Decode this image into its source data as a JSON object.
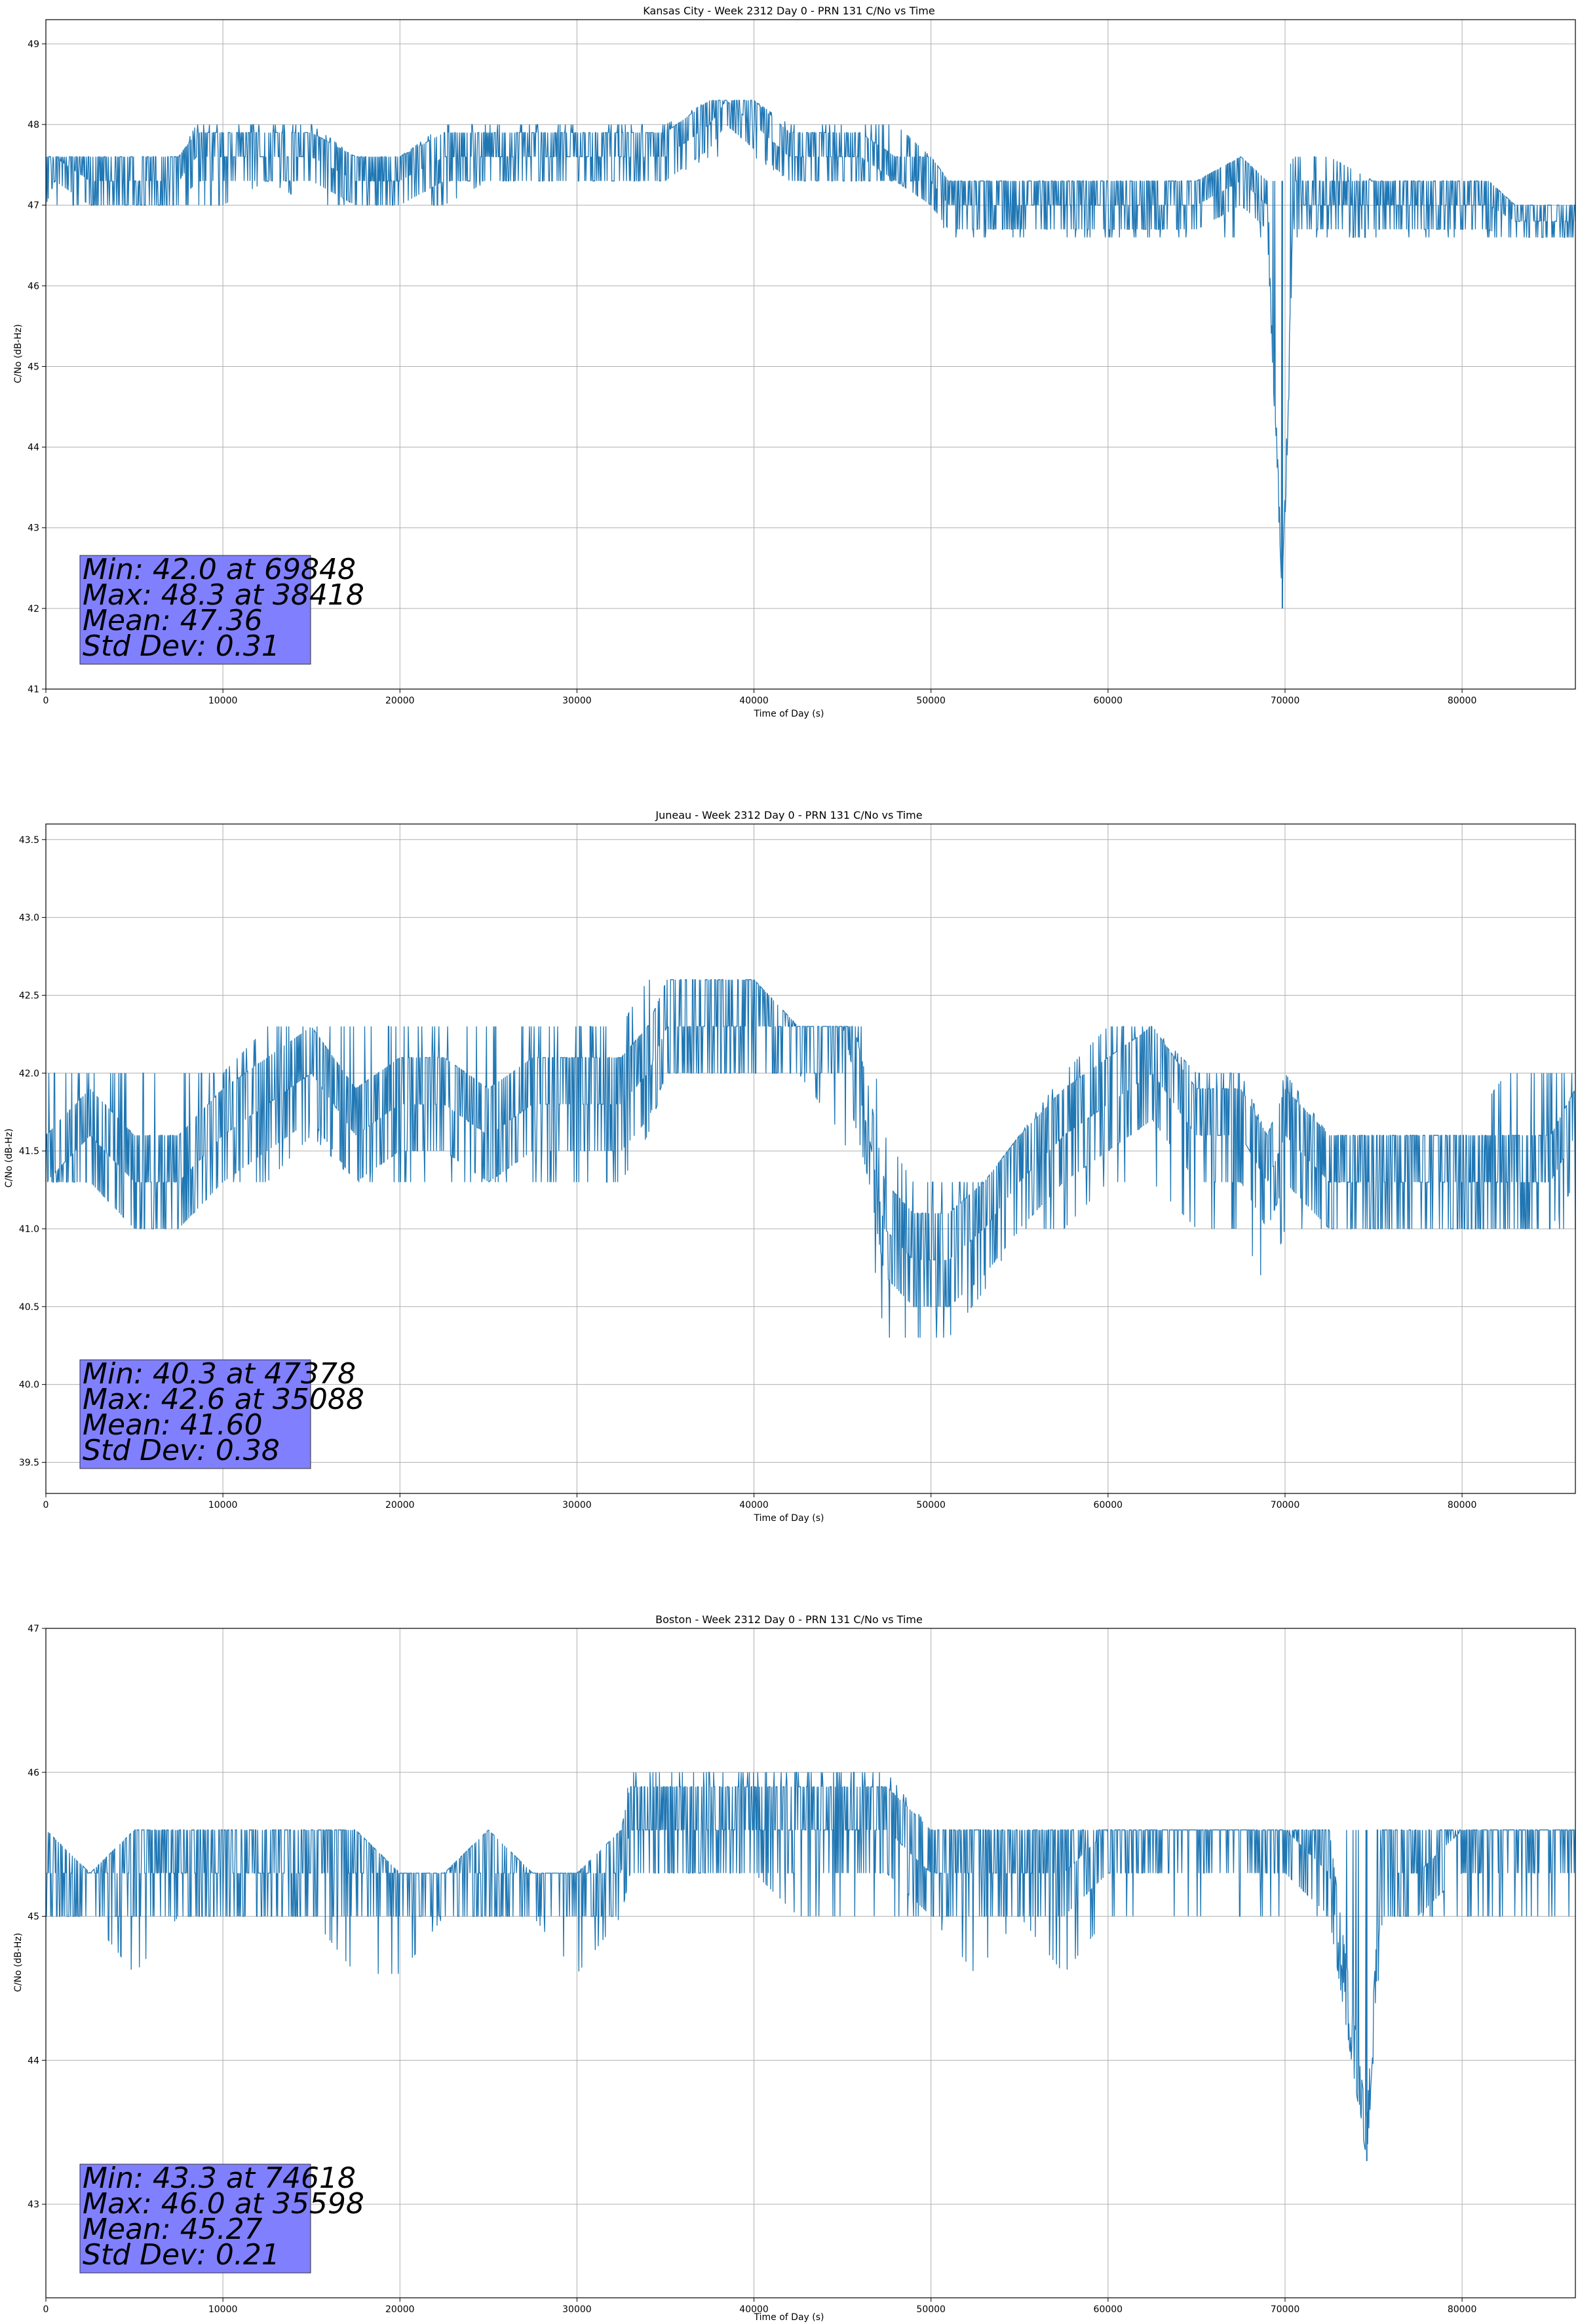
{
  "colors": {
    "series": "#1f77b4",
    "stats_box": "#8080ff",
    "grid": "#b0b0b0"
  },
  "chart_data": [
    {
      "type": "line",
      "title": "Kansas City - Week 2312 Day 0 - PRN 131 C/No vs Time",
      "xlabel": "Time of Day (s)",
      "ylabel": "C/No (dB-Hz)",
      "xlim": [
        0,
        86400
      ],
      "ylim": [
        41,
        49.3
      ],
      "x_ticks": [
        0,
        10000,
        20000,
        30000,
        40000,
        50000,
        60000,
        70000,
        80000
      ],
      "y_ticks": [
        41,
        42,
        43,
        44,
        45,
        46,
        47,
        48,
        49
      ],
      "grid": true,
      "series": [
        {
          "x": [
            0,
            500,
            2500,
            5000,
            7500,
            8500,
            10000,
            12500,
            15000,
            17500,
            20000,
            22500,
            25000,
            27500,
            30000,
            32500,
            35000,
            37500,
            38418,
            40000,
            42000,
            44000,
            46000,
            48000,
            50000,
            51000,
            52500,
            55000,
            57500,
            60000,
            62500,
            65000,
            67500,
            69000,
            69848,
            70500,
            72500,
            75000,
            77500,
            80000,
            81500,
            83000,
            85000,
            86400
          ],
          "y": [
            47.3,
            47.6,
            47.3,
            47.3,
            47.3,
            47.6,
            47.6,
            47.6,
            47.6,
            47.3,
            47.3,
            47.6,
            47.6,
            47.6,
            47.6,
            47.6,
            47.6,
            48.0,
            48.3,
            48.0,
            47.6,
            47.6,
            47.6,
            47.3,
            47.3,
            47.0,
            47.0,
            47.0,
            47.0,
            47.0,
            47.0,
            47.0,
            47.3,
            47.0,
            42.0,
            47.0,
            47.0,
            47.0,
            47.0,
            47.0,
            47.0,
            46.8,
            46.8,
            46.8
          ],
          "lo": [
            47.0,
            47.0,
            47.0,
            47.0,
            47.0,
            47.0,
            47.0,
            47.3,
            47.0,
            47.0,
            47.0,
            47.0,
            47.3,
            47.3,
            47.3,
            47.3,
            47.3,
            47.6,
            47.6,
            47.6,
            47.3,
            47.3,
            47.3,
            47.3,
            47.0,
            46.6,
            46.6,
            46.6,
            46.6,
            46.6,
            46.6,
            46.6,
            46.6,
            46.6,
            42.0,
            46.6,
            46.6,
            46.6,
            46.6,
            46.6,
            46.6,
            46.6,
            46.6,
            46.6
          ],
          "hi": [
            47.6,
            47.6,
            47.6,
            47.6,
            47.6,
            48.0,
            48.0,
            48.0,
            48.0,
            47.6,
            47.6,
            48.0,
            48.0,
            48.0,
            48.0,
            48.0,
            48.0,
            48.3,
            48.3,
            48.3,
            48.0,
            48.0,
            48.0,
            48.0,
            47.6,
            47.3,
            47.3,
            47.3,
            47.3,
            47.3,
            47.3,
            47.3,
            47.6,
            47.3,
            47.3,
            47.6,
            47.6,
            47.3,
            47.3,
            47.3,
            47.3,
            47.0,
            47.0,
            47.0
          ]
        }
      ],
      "stats": [
        "Min: 42.0 at 69848",
        "Max: 48.3 at 38418",
        "Mean: 47.36",
        "Std Dev: 0.31"
      ]
    },
    {
      "type": "line",
      "title": "Juneau - Week 2312 Day 0 - PRN 131 C/No vs Time",
      "xlabel": "Time of Day (s)",
      "ylabel": "C/No (dB-Hz)",
      "xlim": [
        0,
        86400
      ],
      "ylim": [
        39.3,
        43.6
      ],
      "x_ticks": [
        0,
        10000,
        20000,
        30000,
        40000,
        50000,
        60000,
        70000,
        80000
      ],
      "y_ticks": [
        39.5,
        40.0,
        40.5,
        41.0,
        41.5,
        42.0,
        42.5,
        43.0,
        43.5
      ],
      "y_tick_labels": [
        "39.5",
        "40.0",
        "40.5",
        "41.0",
        "41.5",
        "42.0",
        "42.5",
        "43.0",
        "43.5"
      ],
      "grid": true,
      "series": [
        {
          "x": [
            0,
            2500,
            5000,
            7500,
            10000,
            12500,
            15000,
            17500,
            20000,
            22500,
            25000,
            27500,
            30000,
            32500,
            34000,
            35088,
            37500,
            40000,
            42500,
            45000,
            46500,
            47378,
            49000,
            51000,
            53000,
            55000,
            57500,
            60000,
            62500,
            65000,
            67500,
            69000,
            70000,
            72500,
            75000,
            77500,
            80000,
            82500,
            85000,
            86400
          ],
          "y": [
            41.3,
            41.6,
            41.3,
            41.3,
            41.6,
            41.8,
            42.0,
            41.6,
            41.8,
            41.8,
            41.6,
            41.8,
            41.8,
            41.8,
            42.0,
            42.3,
            42.3,
            42.3,
            42.3,
            42.3,
            41.6,
            41.0,
            40.8,
            40.8,
            41.0,
            41.3,
            41.6,
            41.8,
            42.0,
            41.6,
            41.6,
            41.3,
            41.6,
            41.3,
            41.3,
            41.3,
            41.3,
            41.3,
            41.3,
            41.6
          ],
          "lo": [
            41.3,
            41.3,
            41.0,
            41.0,
            41.3,
            41.3,
            41.6,
            41.3,
            41.3,
            41.3,
            41.3,
            41.3,
            41.3,
            41.3,
            41.6,
            42.0,
            42.0,
            42.0,
            42.0,
            41.6,
            41.0,
            40.3,
            40.3,
            40.3,
            40.6,
            41.0,
            41.0,
            41.3,
            41.3,
            41.0,
            41.0,
            40.6,
            41.0,
            41.0,
            41.0,
            41.0,
            41.0,
            41.0,
            41.0,
            41.0
          ],
          "hi": [
            42.0,
            42.0,
            42.0,
            42.0,
            42.0,
            42.3,
            42.3,
            42.3,
            42.3,
            42.3,
            42.3,
            42.3,
            42.3,
            42.3,
            42.6,
            42.6,
            42.6,
            42.6,
            42.3,
            42.3,
            42.3,
            41.6,
            41.3,
            41.3,
            41.3,
            41.6,
            42.0,
            42.3,
            42.3,
            42.0,
            42.0,
            41.6,
            42.0,
            41.6,
            41.6,
            41.6,
            41.6,
            42.0,
            42.0,
            42.0
          ]
        }
      ],
      "stats": [
        "Min: 40.3 at 47378",
        "Max: 42.6 at 35088",
        "Mean: 41.60",
        "Std Dev: 0.38"
      ]
    },
    {
      "type": "line",
      "title": "Boston - Week 2312 Day 0 - PRN 131 C/No vs Time",
      "xlabel": "Time of Day (s)",
      "ylabel": "C/No (dB-Hz)",
      "xlim": [
        0,
        86400
      ],
      "ylim": [
        42.35,
        47.0
      ],
      "x_ticks": [
        0,
        10000,
        20000,
        30000,
        40000,
        50000,
        60000,
        70000,
        80000
      ],
      "y_ticks": [
        43,
        44,
        45,
        46,
        47
      ],
      "grid": true,
      "series": [
        {
          "x": [
            0,
            2500,
            5000,
            7500,
            10000,
            12500,
            15000,
            17500,
            20000,
            22500,
            25000,
            27500,
            30000,
            32500,
            33000,
            35598,
            37500,
            40000,
            42500,
            45000,
            47500,
            50000,
            52500,
            55000,
            57500,
            60000,
            62500,
            65000,
            67500,
            70000,
            72500,
            74618,
            75500,
            77500,
            80000,
            82500,
            85000,
            86400
          ],
          "y": [
            45.3,
            45.3,
            45.3,
            45.3,
            45.3,
            45.3,
            45.3,
            45.3,
            45.3,
            45.3,
            45.3,
            45.3,
            45.3,
            45.3,
            45.6,
            45.6,
            45.6,
            45.6,
            45.6,
            45.6,
            45.6,
            45.3,
            45.3,
            45.3,
            45.3,
            45.6,
            45.6,
            45.6,
            45.6,
            45.6,
            45.3,
            43.3,
            45.3,
            45.3,
            45.6,
            45.6,
            45.6,
            45.6
          ],
          "lo": [
            45.0,
            45.0,
            44.6,
            45.0,
            45.0,
            45.0,
            45.0,
            44.6,
            44.6,
            45.0,
            45.0,
            45.0,
            44.6,
            45.0,
            45.3,
            45.3,
            45.3,
            45.3,
            45.0,
            45.0,
            45.0,
            45.0,
            44.6,
            45.0,
            44.6,
            45.0,
            45.0,
            45.0,
            45.0,
            45.0,
            45.0,
            43.3,
            45.0,
            45.0,
            45.0,
            45.0,
            45.0,
            45.0
          ],
          "hi": [
            45.6,
            45.3,
            45.6,
            45.6,
            45.6,
            45.6,
            45.6,
            45.6,
            45.3,
            45.3,
            45.6,
            45.3,
            45.3,
            45.6,
            46.0,
            46.0,
            46.0,
            46.0,
            46.0,
            46.0,
            46.0,
            45.6,
            45.6,
            45.6,
            45.6,
            45.6,
            45.6,
            45.6,
            45.6,
            45.6,
            45.6,
            45.6,
            45.6,
            45.6,
            45.6,
            45.6,
            45.6,
            45.6
          ]
        }
      ],
      "stats": [
        "Min: 43.3 at 74618",
        "Max: 46.0 at 35598",
        "Mean: 45.27",
        "Std Dev: 0.21"
      ]
    }
  ]
}
